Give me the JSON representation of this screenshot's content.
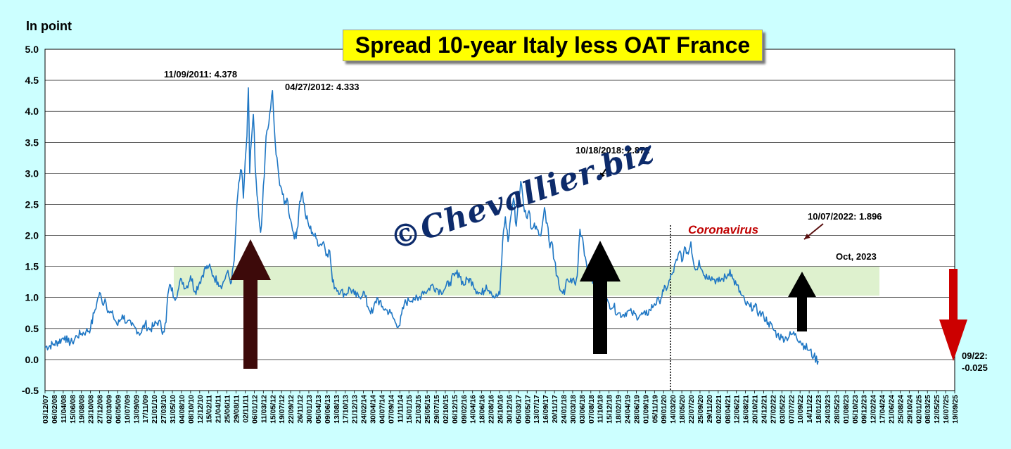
{
  "chart_data": {
    "type": "line",
    "title": "Spread 10-year Italy less OAT France",
    "ylabel": "In point",
    "ylim": [
      -0.5,
      5.0
    ],
    "yticks": [
      "5.0",
      "4.5",
      "4.0",
      "3.5",
      "3.0",
      "2.5",
      "2.0",
      "1.5",
      "1.0",
      "0.5",
      "0.0",
      "-0.5"
    ],
    "xticks": [
      "03/12/07",
      "06/02/08",
      "11/04/08",
      "15/06/08",
      "19/08/08",
      "23/10/08",
      "27/12/08",
      "02/03/09",
      "06/05/09",
      "10/07/09",
      "13/09/09",
      "17/11/09",
      "21/01/10",
      "27/03/10",
      "31/05/10",
      "04/08/10",
      "08/10/10",
      "12/12/10",
      "15/02/11",
      "21/04/11",
      "25/06/11",
      "29/08/11",
      "02/11/11",
      "06/01/12",
      "11/03/12",
      "15/05/12",
      "19/07/12",
      "22/09/12",
      "26/11/12",
      "30/01/13",
      "05/04/13",
      "09/06/13",
      "13/08/13",
      "17/10/13",
      "21/12/13",
      "24/02/14",
      "30/04/14",
      "04/07/14",
      "07/09/14",
      "11/11/14",
      "15/01/15",
      "21/03/15",
      "25/05/15",
      "29/07/15",
      "02/10/15",
      "06/12/15",
      "09/02/16",
      "14/04/16",
      "18/06/16",
      "22/08/16",
      "26/10/16",
      "30/12/16",
      "05/03/17",
      "09/05/17",
      "13/07/17",
      "16/09/17",
      "20/11/17",
      "24/01/18",
      "30/03/18",
      "03/06/18",
      "07/08/18",
      "11/10/18",
      "15/12/18",
      "18/02/19",
      "24/04/19",
      "28/06/19",
      "01/09/19",
      "05/11/19",
      "09/01/20",
      "14/03/20",
      "18/05/20",
      "22/07/20",
      "25/09/20",
      "29/11/20",
      "02/02/21",
      "08/04/21",
      "12/06/21",
      "16/08/21",
      "20/10/21",
      "24/12/21",
      "27/02/22",
      "03/05/22",
      "07/07/22",
      "10/09/22",
      "14/11/22",
      "18/01/23",
      "24/03/23",
      "28/05/23",
      "01/08/23",
      "05/10/23",
      "09/12/23",
      "12/02/24",
      "17/04/24",
      "21/06/24",
      "25/08/24",
      "29/10/24",
      "02/01/25",
      "08/03/25",
      "12/05/25",
      "16/07/25",
      "19/09/25"
    ],
    "series": [
      {
        "values": [
          [
            0,
            0.2
          ],
          [
            1,
            0.25
          ],
          [
            1.8,
            0.32
          ],
          [
            2.2,
            0.38
          ],
          [
            2.5,
            0.28
          ],
          [
            3,
            0.28
          ],
          [
            3.5,
            0.38
          ],
          [
            4,
            0.42
          ],
          [
            4.5,
            0.45
          ],
          [
            5,
            0.5
          ],
          [
            5.4,
            0.75
          ],
          [
            5.7,
            0.92
          ],
          [
            6,
            1.08
          ],
          [
            6.3,
            0.9
          ],
          [
            6.6,
            0.98
          ],
          [
            7,
            0.78
          ],
          [
            7.5,
            0.7
          ],
          [
            8,
            0.55
          ],
          [
            8.5,
            0.72
          ],
          [
            9,
            0.6
          ],
          [
            9.5,
            0.55
          ],
          [
            10,
            0.5
          ],
          [
            10.5,
            0.42
          ],
          [
            11,
            0.58
          ],
          [
            11.5,
            0.48
          ],
          [
            12,
            0.55
          ],
          [
            12.5,
            0.62
          ],
          [
            13,
            0.45
          ],
          [
            13.3,
            0.6
          ],
          [
            13.5,
            1.05
          ],
          [
            13.8,
            1.2
          ],
          [
            14.2,
            1.0
          ],
          [
            14.6,
            1.1
          ],
          [
            15,
            1.3
          ],
          [
            15.5,
            1.15
          ],
          [
            16,
            1.35
          ],
          [
            16.5,
            1.1
          ],
          [
            17,
            1.25
          ],
          [
            17.5,
            1.45
          ],
          [
            18,
            1.5
          ],
          [
            18.5,
            1.35
          ],
          [
            19,
            1.25
          ],
          [
            19.5,
            1.2
          ],
          [
            20,
            1.4
          ],
          [
            20.5,
            1.25
          ],
          [
            20.8,
            1.6
          ],
          [
            21,
            2.2
          ],
          [
            21.3,
            2.85
          ],
          [
            21.6,
            3.05
          ],
          [
            21.8,
            2.6
          ],
          [
            22,
            3.2
          ],
          [
            22.2,
            3.6
          ],
          [
            22.35,
            4.378
          ],
          [
            22.5,
            3.0
          ],
          [
            22.7,
            3.55
          ],
          [
            22.9,
            3.95
          ],
          [
            23.1,
            3.1
          ],
          [
            23.3,
            2.65
          ],
          [
            23.5,
            2.3
          ],
          [
            23.7,
            2.05
          ],
          [
            23.9,
            2.45
          ],
          [
            24.1,
            2.95
          ],
          [
            24.3,
            3.6
          ],
          [
            24.6,
            3.8
          ],
          [
            24.8,
            4.05
          ],
          [
            25.0,
            4.333
          ],
          [
            25.2,
            3.75
          ],
          [
            25.4,
            3.3
          ],
          [
            25.7,
            2.95
          ],
          [
            26,
            2.75
          ],
          [
            26.3,
            2.5
          ],
          [
            26.6,
            2.6
          ],
          [
            27,
            2.25
          ],
          [
            27.3,
            2.05
          ],
          [
            27.6,
            1.95
          ],
          [
            28,
            2.55
          ],
          [
            28.3,
            2.7
          ],
          [
            28.6,
            2.35
          ],
          [
            29,
            2.15
          ],
          [
            29.4,
            2.05
          ],
          [
            29.8,
            1.95
          ],
          [
            30.2,
            1.85
          ],
          [
            30.6,
            1.9
          ],
          [
            31,
            1.7
          ],
          [
            31.3,
            1.75
          ],
          [
            31.6,
            1.25
          ],
          [
            32,
            1.15
          ],
          [
            32.5,
            1.1
          ],
          [
            33,
            1.05
          ],
          [
            33.5,
            1.15
          ],
          [
            34,
            1.05
          ],
          [
            34.5,
            1.0
          ],
          [
            35,
            1.1
          ],
          [
            35.5,
            0.85
          ],
          [
            36,
            0.75
          ],
          [
            36.5,
            1.0
          ],
          [
            37,
            0.85
          ],
          [
            37.5,
            0.8
          ],
          [
            38,
            0.75
          ],
          [
            38.5,
            0.6
          ],
          [
            39,
            0.55
          ],
          [
            39.5,
            0.9
          ],
          [
            40,
            0.95
          ],
          [
            40.5,
            1.0
          ],
          [
            41,
            0.95
          ],
          [
            41.5,
            1.1
          ],
          [
            42,
            1.1
          ],
          [
            42.5,
            1.2
          ],
          [
            43,
            1.15
          ],
          [
            43.5,
            1.1
          ],
          [
            44,
            1.15
          ],
          [
            44.5,
            1.25
          ],
          [
            45,
            1.35
          ],
          [
            45.5,
            1.4
          ],
          [
            46,
            1.2
          ],
          [
            46.5,
            1.3
          ],
          [
            47,
            1.25
          ],
          [
            47.5,
            1.1
          ],
          [
            48,
            1.05
          ],
          [
            48.5,
            1.2
          ],
          [
            49,
            1.1
          ],
          [
            49.5,
            1.0
          ],
          [
            50,
            1.05
          ],
          [
            50.3,
            1.9
          ],
          [
            50.6,
            2.3
          ],
          [
            50.9,
            1.9
          ],
          [
            51.2,
            2.3
          ],
          [
            51.5,
            2.6
          ],
          [
            51.8,
            2.15
          ],
          [
            52,
            2.5
          ],
          [
            52.3,
            2.872
          ],
          [
            52.6,
            2.5
          ],
          [
            52.9,
            2.3
          ],
          [
            53.2,
            2.4
          ],
          [
            53.5,
            2.1
          ],
          [
            53.8,
            2.2
          ],
          [
            54,
            2.15
          ],
          [
            54.3,
            2.0
          ],
          [
            54.6,
            2.1
          ],
          [
            54.9,
            2.45
          ],
          [
            55.2,
            2.2
          ],
          [
            55.5,
            1.8
          ],
          [
            55.7,
            1.9
          ],
          [
            56,
            1.6
          ],
          [
            56.2,
            1.35
          ],
          [
            56.5,
            1.2
          ],
          [
            56.8,
            1.1
          ],
          [
            57.1,
            1.05
          ],
          [
            57.4,
            1.3
          ],
          [
            57.7,
            1.25
          ],
          [
            58,
            1.3
          ],
          [
            58.3,
            1.2
          ],
          [
            58.5,
            1.35
          ],
          [
            58.8,
            2.1
          ],
          [
            59.1,
            1.95
          ],
          [
            59.4,
            1.65
          ],
          [
            59.7,
            1.4
          ],
          [
            60,
            1.3
          ],
          [
            60.3,
            1.25
          ],
          [
            60.6,
            1.2
          ],
          [
            61,
            1.05
          ],
          [
            61.5,
            0.95
          ],
          [
            62,
            0.9
          ],
          [
            62.5,
            0.85
          ],
          [
            63,
            0.75
          ],
          [
            63.5,
            0.72
          ],
          [
            64,
            0.78
          ],
          [
            64.5,
            0.75
          ],
          [
            65,
            0.7
          ],
          [
            65.5,
            0.72
          ],
          [
            66,
            0.72
          ],
          [
            66.5,
            0.8
          ],
          [
            67,
            0.9
          ],
          [
            67.5,
            0.95
          ],
          [
            68,
            1.1
          ],
          [
            68.5,
            1.2
          ],
          [
            69,
            1.4
          ],
          [
            69.5,
            1.6
          ],
          [
            69.8,
            1.75
          ],
          [
            70.1,
            1.6
          ],
          [
            70.4,
            1.8
          ],
          [
            70.7,
            1.7
          ],
          [
            71,
            1.896
          ],
          [
            71.3,
            1.55
          ],
          [
            71.6,
            1.45
          ],
          [
            71.9,
            1.6
          ],
          [
            72.2,
            1.45
          ],
          [
            72.5,
            1.35
          ],
          [
            73,
            1.35
          ],
          [
            73.5,
            1.3
          ],
          [
            74,
            1.25
          ],
          [
            74.5,
            1.3
          ],
          [
            75,
            1.35
          ],
          [
            75.3,
            1.45
          ],
          [
            75.6,
            1.3
          ],
          [
            76,
            1.2
          ],
          [
            76.5,
            1.05
          ],
          [
            77,
            0.9
          ],
          [
            77.5,
            0.85
          ],
          [
            78,
            0.85
          ],
          [
            78.5,
            0.75
          ],
          [
            79,
            0.7
          ],
          [
            79.5,
            0.6
          ],
          [
            80,
            0.5
          ],
          [
            80.5,
            0.4
          ],
          [
            81,
            0.35
          ],
          [
            81.5,
            0.35
          ],
          [
            82,
            0.4
          ],
          [
            82.5,
            0.42
          ],
          [
            83,
            0.3
          ],
          [
            83.5,
            0.22
          ],
          [
            84,
            0.15
          ],
          [
            84.5,
            0.05
          ],
          [
            85,
            -0.025
          ]
        ]
      }
    ],
    "annotations": [
      "11/09/2011: 4.378",
      "04/27/2012: 4.333",
      "10/18/2018: 2.872",
      "10/07/2022: 1.896",
      "Oct, 2023",
      "09/22:",
      "-0.025",
      "Coronavirus"
    ],
    "band": [
      1.03,
      1.5
    ],
    "watermark": "©Chevallier.biz",
    "colors": {
      "background": "#ccffff",
      "plot": "#ffffff",
      "line": "#1f77c4",
      "band": "#d8efc6",
      "title_box": "#ffff00",
      "arrow_dark": "#3d0a0a",
      "arrow_black": "#000000",
      "arrow_red": "#cc0000",
      "corona": "#c00000"
    },
    "grid": true,
    "legend": "none"
  }
}
